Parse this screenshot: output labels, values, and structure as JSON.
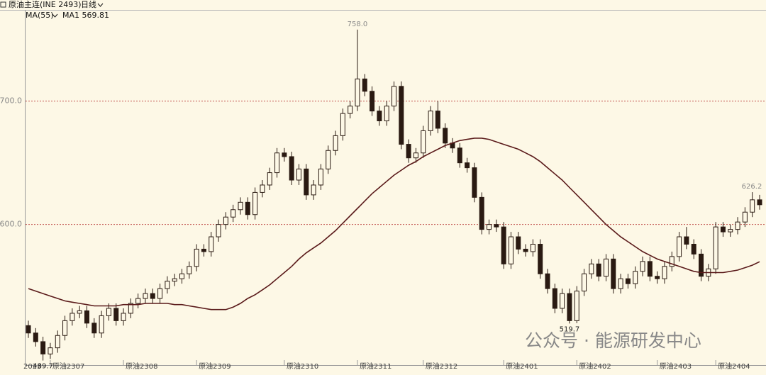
{
  "chart_data": {
    "type": "candlestick",
    "title": "原油主连(INE 2493)",
    "period": "日线",
    "indicator": "MA(55)",
    "ma_legend": "MA1 569.81",
    "watermark": "公众号 · 能源研发中心",
    "ylim": [
      486,
      782
    ],
    "yticks": [
      {
        "value": 600,
        "label": "600.0"
      },
      {
        "value": 700,
        "label": "700.0"
      }
    ],
    "grid": true,
    "up_color": "#2a1a12",
    "down_color": "#2a1a12",
    "categories": [
      "2023",
      null,
      null,
      "原油2307",
      null,
      null,
      null,
      null,
      null,
      null,
      null,
      null,
      null,
      "原油2308",
      null,
      null,
      null,
      null,
      null,
      null,
      null,
      null,
      null,
      "原油2309",
      null,
      null,
      null,
      null,
      null,
      null,
      null,
      null,
      null,
      null,
      null,
      "原油2310",
      null,
      null,
      null,
      null,
      null,
      null,
      null,
      null,
      null,
      "原油2311",
      null,
      null,
      null,
      null,
      null,
      null,
      null,
      null,
      "原油2312",
      null,
      null,
      null,
      null,
      null,
      null,
      null,
      null,
      null,
      null,
      "原油2401",
      null,
      null,
      null,
      null,
      null,
      null,
      null,
      null,
      null,
      "原油2402",
      null,
      null,
      null,
      null,
      null,
      null,
      null,
      null,
      null,
      null,
      "原油2403",
      null,
      null,
      null,
      null,
      null,
      null,
      null,
      "原油2404",
      null,
      null,
      null,
      null,
      null,
      null
    ],
    "open": [
      518,
      512,
      505,
      495,
      500,
      510,
      522,
      528,
      530,
      520,
      512,
      526,
      532,
      522,
      528,
      536,
      540,
      544,
      540,
      548,
      554,
      556,
      560,
      566,
      580,
      578,
      590,
      600,
      606,
      612,
      618,
      608,
      626,
      632,
      642,
      658,
      655,
      636,
      645,
      624,
      632,
      645,
      660,
      672,
      690,
      696,
      718,
      708,
      692,
      684,
      696,
      712,
      665,
      654,
      658,
      676,
      692,
      678,
      666,
      662,
      650,
      646,
      622,
      596,
      600,
      598,
      568,
      590,
      580,
      578,
      584,
      560,
      548,
      532,
      544,
      522,
      546,
      560,
      568,
      558,
      572,
      548,
      556,
      552,
      562,
      570,
      558,
      556,
      566,
      574,
      590,
      584,
      576,
      558,
      564,
      598,
      594,
      596,
      602,
      610,
      620
    ],
    "high": [
      522,
      516,
      509,
      504,
      514,
      526,
      532,
      534,
      534,
      524,
      530,
      536,
      536,
      532,
      540,
      544,
      548,
      548,
      552,
      558,
      560,
      564,
      570,
      584,
      584,
      594,
      604,
      610,
      616,
      622,
      622,
      630,
      636,
      646,
      662,
      662,
      659,
      649,
      649,
      636,
      649,
      664,
      676,
      694,
      700,
      758.0,
      722,
      712,
      696,
      700,
      716,
      716,
      669,
      662,
      680,
      696,
      700,
      682,
      670,
      666,
      654,
      650,
      626,
      604,
      604,
      602,
      594,
      594,
      584,
      588,
      588,
      564,
      552,
      548,
      548,
      550,
      564,
      572,
      572,
      576,
      576,
      560,
      560,
      566,
      574,
      574,
      562,
      570,
      578,
      594,
      598,
      588,
      580,
      568,
      602,
      602,
      600,
      606,
      614,
      626.2,
      624
    ],
    "low": [
      508,
      501,
      489.7,
      491,
      496,
      506,
      518,
      524,
      516,
      508,
      508,
      522,
      518,
      518,
      524,
      532,
      536,
      536,
      536,
      544,
      550,
      552,
      556,
      562,
      574,
      574,
      586,
      596,
      602,
      608,
      604,
      604,
      622,
      628,
      638,
      651,
      632,
      632,
      620,
      620,
      628,
      641,
      656,
      668,
      686,
      692,
      704,
      688,
      680,
      680,
      692,
      661,
      650,
      650,
      654,
      672,
      674,
      662,
      658,
      646,
      642,
      618,
      592,
      592,
      594,
      564,
      564,
      576,
      574,
      574,
      556,
      544,
      528,
      528,
      519.7,
      520,
      542,
      556,
      554,
      554,
      544,
      544,
      548,
      548,
      558,
      554,
      552,
      552,
      562,
      570,
      580,
      572,
      554,
      554,
      560,
      590,
      590,
      592,
      598,
      606,
      612
    ],
    "close": [
      512,
      505,
      495,
      500,
      510,
      522,
      528,
      530,
      520,
      512,
      526,
      532,
      522,
      528,
      536,
      540,
      544,
      540,
      548,
      554,
      556,
      560,
      566,
      580,
      578,
      590,
      600,
      606,
      612,
      618,
      608,
      626,
      632,
      642,
      658,
      655,
      636,
      645,
      624,
      632,
      645,
      660,
      672,
      690,
      696,
      718,
      708,
      692,
      684,
      696,
      712,
      665,
      654,
      658,
      676,
      692,
      678,
      666,
      662,
      650,
      646,
      622,
      596,
      600,
      598,
      568,
      590,
      580,
      578,
      584,
      560,
      548,
      532,
      544,
      522,
      546,
      560,
      568,
      558,
      572,
      548,
      556,
      552,
      562,
      570,
      558,
      556,
      566,
      574,
      590,
      584,
      576,
      558,
      564,
      598,
      594,
      596,
      602,
      610,
      620,
      616
    ],
    "ma": {
      "color": "#5a1a1a",
      "values": [
        548,
        546,
        544,
        542,
        540,
        538,
        537,
        536,
        535,
        534,
        534,
        534,
        534,
        535,
        535,
        535,
        536,
        536,
        536,
        536,
        535,
        535,
        534,
        533,
        532,
        531,
        531,
        531,
        533,
        536,
        540,
        543,
        547,
        551,
        556,
        561,
        566,
        572,
        577,
        581,
        585,
        590,
        595,
        601,
        607,
        613,
        619,
        625,
        630,
        635,
        640,
        644,
        648,
        651,
        655,
        658,
        661,
        664,
        666,
        668,
        669,
        670,
        670,
        669,
        667,
        665,
        663,
        661,
        658,
        655,
        651,
        646,
        641,
        636,
        630,
        624,
        618,
        612,
        606,
        600,
        595,
        590,
        586,
        582,
        578,
        575,
        572,
        570,
        568,
        566,
        564,
        562,
        561,
        561,
        561,
        561,
        562,
        563,
        565,
        567,
        569.81
      ]
    },
    "annotations": [
      {
        "label": "758.0",
        "value": 758.0,
        "at": "high"
      },
      {
        "label": "519.7",
        "value": 519.7,
        "at": "low"
      },
      {
        "label": "626.2",
        "value": 626.2,
        "at": "high"
      },
      {
        "label": "489.7",
        "value": 489.7,
        "at": "low"
      }
    ]
  }
}
